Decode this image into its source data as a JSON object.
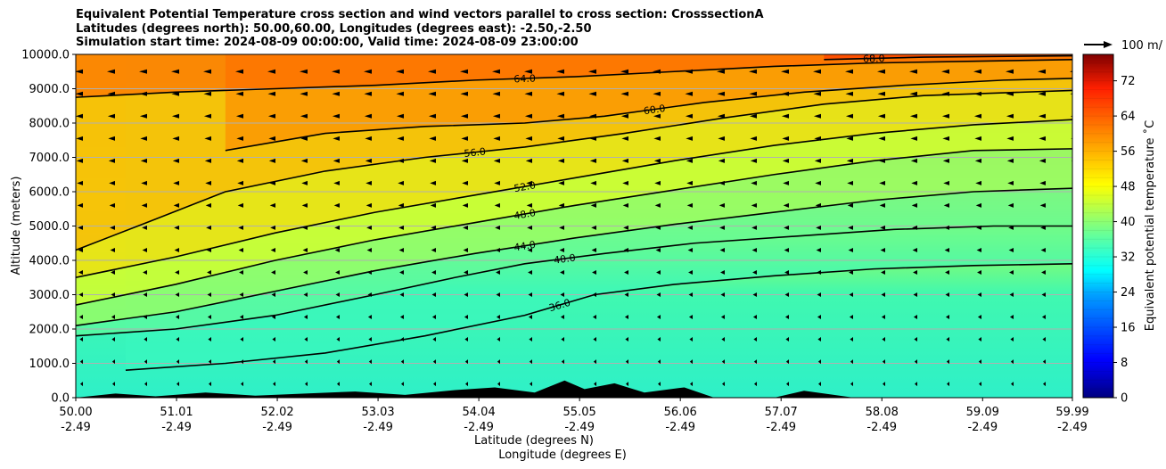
{
  "chart_data": {
    "type": "contour",
    "title_lines": [
      "Equivalent Potential Temperature cross section and wind vectors parallel to cross section: CrosssectionA",
      "Latitudes (degrees north): 50.00,60.00, Longitudes (degrees east): -2.50,-2.50",
      "Simulation start time: 2024-08-09 00:00:00, Valid time: 2024-08-09 23:00:00"
    ],
    "ylabel": "Altitude (meters)",
    "xlabel_lat": "Latitude (degrees N)",
    "xlabel_lon": "Longitude (degrees E)",
    "ylim": [
      0,
      10000
    ],
    "y_ticks": [
      "0.0",
      "1000.0",
      "2000.0",
      "3000.0",
      "4000.0",
      "5000.0",
      "6000.0",
      "7000.0",
      "8000.0",
      "9000.0",
      "10000.0"
    ],
    "x_ticks_lat": [
      "50.00",
      "51.01",
      "52.02",
      "53.03",
      "54.04",
      "55.05",
      "56.06",
      "57.07",
      "58.08",
      "59.09",
      "59.99"
    ],
    "x_ticks_lon": [
      "-2.49",
      "-2.49",
      "-2.49",
      "-2.49",
      "-2.49",
      "-2.49",
      "-2.49",
      "-2.49",
      "-2.49",
      "-2.49",
      "-2.49"
    ],
    "colorbar": {
      "label": "Equivalent potential temperature ˚C",
      "min": 0,
      "max": 78,
      "ticks": [
        "0",
        "8",
        "16",
        "24",
        "32",
        "40",
        "48",
        "56",
        "64",
        "72"
      ],
      "tick_values": [
        0,
        8,
        16,
        24,
        32,
        40,
        48,
        56,
        64,
        72
      ]
    },
    "quiver_key": "100 m/",
    "contours": [
      {
        "value": 36,
        "label": "36.0",
        "points": [
          [
            50.5,
            800
          ],
          [
            51.5,
            1000
          ],
          [
            52.5,
            1300
          ],
          [
            53.5,
            1800
          ],
          [
            54.5,
            2400
          ],
          [
            55.2,
            3000
          ],
          [
            56,
            3300
          ],
          [
            57,
            3550
          ],
          [
            58,
            3750
          ],
          [
            59,
            3850
          ],
          [
            59.99,
            3900
          ]
        ]
      },
      {
        "value": 40,
        "label": "40.0",
        "points": [
          [
            50,
            1800
          ],
          [
            51,
            2000
          ],
          [
            52,
            2400
          ],
          [
            53,
            3000
          ],
          [
            53.8,
            3500
          ],
          [
            54.5,
            3900
          ],
          [
            55.3,
            4200
          ],
          [
            56.2,
            4500
          ],
          [
            57.2,
            4700
          ],
          [
            58.2,
            4900
          ],
          [
            59.2,
            5000
          ],
          [
            59.99,
            5000
          ]
        ]
      },
      {
        "value": 44,
        "label": "44.0",
        "points": [
          [
            50,
            2100
          ],
          [
            51,
            2500
          ],
          [
            52,
            3100
          ],
          [
            53,
            3700
          ],
          [
            54,
            4200
          ],
          [
            55,
            4650
          ],
          [
            56,
            5050
          ],
          [
            57,
            5400
          ],
          [
            58,
            5750
          ],
          [
            59,
            6000
          ],
          [
            59.99,
            6100
          ]
        ]
      },
      {
        "value": 48,
        "label": "48.0",
        "points": [
          [
            50,
            2700
          ],
          [
            51,
            3300
          ],
          [
            52,
            4000
          ],
          [
            53,
            4600
          ],
          [
            54,
            5100
          ],
          [
            55,
            5600
          ],
          [
            56,
            6050
          ],
          [
            57,
            6500
          ],
          [
            58,
            6900
          ],
          [
            59,
            7200
          ],
          [
            59.99,
            7250
          ]
        ]
      },
      {
        "value": 52,
        "label": "52.0",
        "points": [
          [
            50,
            3500
          ],
          [
            51,
            4100
          ],
          [
            52,
            4800
          ],
          [
            53,
            5400
          ],
          [
            54,
            5900
          ],
          [
            55,
            6400
          ],
          [
            56,
            6900
          ],
          [
            57,
            7350
          ],
          [
            58,
            7700
          ],
          [
            59,
            7950
          ],
          [
            59.99,
            8100
          ]
        ]
      },
      {
        "value": 56,
        "label": "56.0",
        "points": [
          [
            50,
            4300
          ],
          [
            50.8,
            5200
          ],
          [
            51.5,
            6000
          ],
          [
            52.5,
            6600
          ],
          [
            53.5,
            7000
          ],
          [
            54.5,
            7300
          ],
          [
            55.5,
            7700
          ],
          [
            56.5,
            8150
          ],
          [
            57.5,
            8550
          ],
          [
            58.5,
            8800
          ],
          [
            59.99,
            8950
          ]
        ]
      },
      {
        "value": 60,
        "label": "60.0",
        "points": [
          [
            51.5,
            7200
          ],
          [
            52.5,
            7700
          ],
          [
            53.5,
            7900
          ],
          [
            54.5,
            8000
          ],
          [
            55.3,
            8200
          ],
          [
            56.3,
            8600
          ],
          [
            57.3,
            8900
          ],
          [
            58.3,
            9100
          ],
          [
            59.3,
            9250
          ],
          [
            59.99,
            9300
          ]
        ]
      },
      {
        "value": 64,
        "label": "64.0",
        "points": [
          [
            50,
            8750
          ],
          [
            51,
            8900
          ],
          [
            52,
            9000
          ],
          [
            53,
            9100
          ],
          [
            54,
            9250
          ],
          [
            55,
            9350
          ],
          [
            56,
            9500
          ],
          [
            57,
            9650
          ],
          [
            58,
            9750
          ],
          [
            59,
            9800
          ],
          [
            59.99,
            9850
          ]
        ]
      },
      {
        "value": 68,
        "label": "68.0",
        "points": [
          [
            57.5,
            9850
          ],
          [
            58.5,
            9920
          ],
          [
            59.99,
            9960
          ]
        ]
      }
    ]
  }
}
